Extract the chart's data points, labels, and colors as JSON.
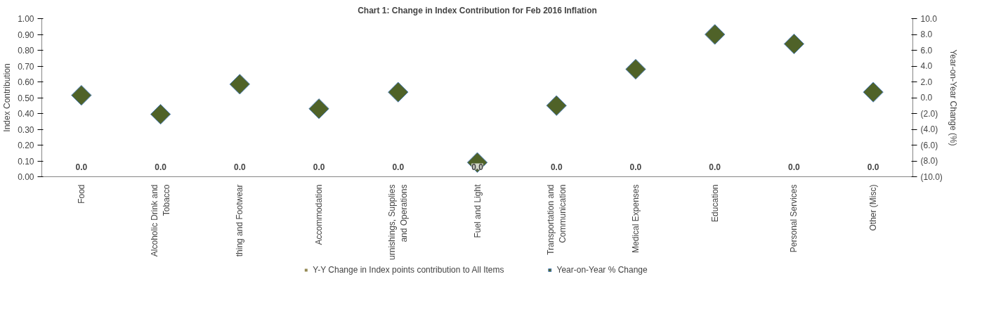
{
  "chart_data": {
    "type": "bar",
    "title": "Chart 1: Change in Index Contribution for Feb 2016 Inflation",
    "ylabel": "Index Contribution",
    "y2label": "Year-on-Year Change (%)",
    "categories": [
      "Food",
      "Alcoholic Drink and\nTobacco",
      "thing and Footwear",
      "Accommodation",
      "urnishings, Supplies\nand Operations",
      "Fuel and Light",
      "Transportation and\nCommunication",
      "Medical Expenses",
      "Education",
      "Personal Services",
      "Other (Misc)"
    ],
    "series": [
      {
        "name": "Y-Y Change in Index points contribution to All Items",
        "color": "#948a54",
        "values": [
          0,
          0,
          0,
          0,
          0,
          0,
          0,
          0,
          0,
          0,
          0
        ],
        "value_labels": [
          "0.0",
          "0.0",
          "0.0",
          "0.0",
          "0.0",
          "0.0",
          "0.0",
          "0.0",
          "0.0",
          "0.0",
          "0.0"
        ]
      },
      {
        "name": "Year-on-Year % Change",
        "type": "scatter",
        "axis": "y2",
        "marker": "diamond",
        "color": "#4f6228",
        "values": [
          0.3,
          -2.1,
          1.7,
          -1.4,
          0.7,
          -8.2,
          -1.0,
          3.6,
          8.0,
          6.8,
          0.7
        ]
      }
    ],
    "ylim": [
      0,
      1
    ],
    "yticks": [
      {
        "value": 0,
        "label": "0.00"
      },
      {
        "value": 0.1,
        "label": "0.10"
      },
      {
        "value": 0.2,
        "label": "0.20"
      },
      {
        "value": 0.3,
        "label": "0.30"
      },
      {
        "value": 0.4,
        "label": "0.40"
      },
      {
        "value": 0.5,
        "label": "0.50"
      },
      {
        "value": 0.6,
        "label": "0.60"
      },
      {
        "value": 0.7,
        "label": "0.70"
      },
      {
        "value": 0.8,
        "label": "0.80"
      },
      {
        "value": 0.9,
        "label": "0.90"
      },
      {
        "value": 1,
        "label": "1.00"
      }
    ],
    "y2lim": [
      -10,
      10
    ],
    "y2ticks": [
      {
        "value": -10,
        "label": "(10.0)"
      },
      {
        "value": -8,
        "label": "(8.0)"
      },
      {
        "value": -6,
        "label": "(6.0)"
      },
      {
        "value": -4,
        "label": "(4.0)"
      },
      {
        "value": -2,
        "label": "(2.0)"
      },
      {
        "value": 0,
        "label": "0.0"
      },
      {
        "value": 2,
        "label": "2.0"
      },
      {
        "value": 4,
        "label": "4.0"
      },
      {
        "value": 6,
        "label": "6.0"
      },
      {
        "value": 8,
        "label": "8.0"
      },
      {
        "value": 10,
        "label": "10.0"
      }
    ],
    "grid": false,
    "legend": "bottom"
  }
}
